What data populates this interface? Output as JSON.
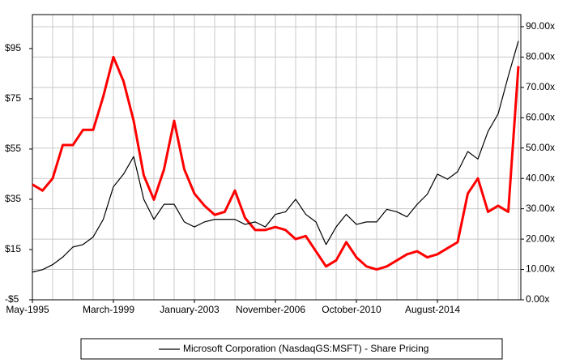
{
  "chart_data": {
    "type": "line",
    "categories": [
      "May-1995",
      null,
      null,
      null,
      null,
      null,
      null,
      null,
      "March-1999",
      null,
      null,
      null,
      null,
      null,
      null,
      null,
      "January-2003",
      null,
      null,
      null,
      null,
      null,
      null,
      null,
      "November-2006",
      null,
      null,
      null,
      null,
      null,
      null,
      null,
      "October-2010",
      null,
      null,
      null,
      null,
      null,
      null,
      null,
      "August-2014",
      null,
      null,
      null,
      null,
      null,
      null,
      null,
      null
    ],
    "series": [
      {
        "name": "Microsoft Corporation (NasdaqGS:MSFT) - Share Pricing",
        "color": "#000000",
        "axis": "y",
        "values": [
          6,
          7,
          9,
          12,
          16,
          17,
          20,
          27,
          40,
          45,
          52,
          35,
          27,
          33,
          33,
          26,
          24,
          26,
          27,
          27,
          27,
          25,
          26,
          24,
          29,
          30,
          35,
          29,
          26,
          17,
          24,
          29,
          25,
          26,
          26,
          31,
          30,
          28,
          33,
          37,
          45,
          43,
          46,
          54,
          51,
          62,
          69,
          84,
          98
        ]
      },
      {
        "color": "#ff0000",
        "axis": "y2",
        "values": [
          38,
          36,
          40,
          51,
          51,
          56,
          56,
          67,
          80,
          72,
          59,
          41,
          33,
          43,
          59,
          43,
          35,
          31,
          28,
          29,
          36,
          27,
          23,
          23,
          24,
          23,
          20,
          21,
          16,
          11,
          13,
          19,
          14,
          11,
          10,
          11,
          13,
          15,
          16,
          14,
          15,
          17,
          19,
          35,
          40,
          29,
          31,
          29,
          77
        ]
      }
    ],
    "ylim": [
      -5,
      108.5
    ],
    "yticks": [
      {
        "value": -5,
        "label": "-$5"
      },
      {
        "value": 15,
        "label": "$15"
      },
      {
        "value": 35,
        "label": "$35"
      },
      {
        "value": 55,
        "label": "$55"
      },
      {
        "value": 75,
        "label": "$75"
      },
      {
        "value": 95,
        "label": "$95"
      }
    ],
    "y2lim": [
      0,
      94
    ],
    "y2ticks": [
      {
        "value": 0,
        "label": "0.00x"
      },
      {
        "value": 10,
        "label": "10.00x"
      },
      {
        "value": 20,
        "label": "20.00x"
      },
      {
        "value": 30,
        "label": "30.00x"
      },
      {
        "value": 40,
        "label": "40.00x"
      },
      {
        "value": 50,
        "label": "50.00x"
      },
      {
        "value": 60,
        "label": "60.00x"
      },
      {
        "value": 70,
        "label": "70.00x"
      },
      {
        "value": 80,
        "label": "80.00x"
      },
      {
        "value": 90,
        "label": "90.00x"
      }
    ],
    "grid": true,
    "legend": "bottom"
  }
}
